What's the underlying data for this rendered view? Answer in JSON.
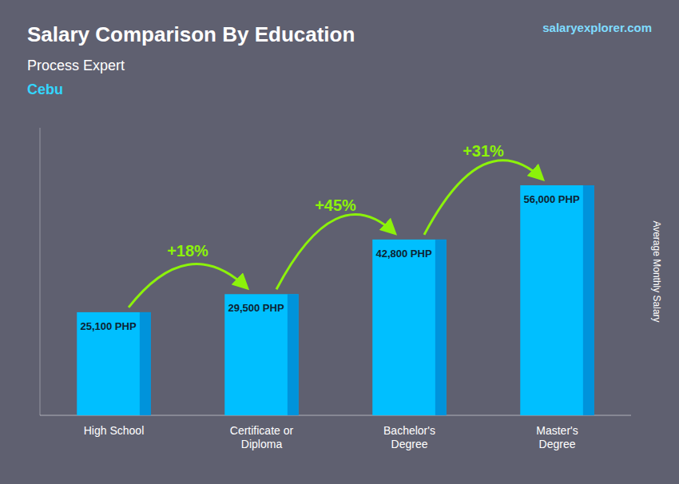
{
  "chart_data": {
    "type": "bar",
    "title": "Salary Comparison By Education",
    "subtitle": [
      "Process Expert",
      "Cebu"
    ],
    "source": "salaryexplorer.com",
    "y_label": "Average Monthly Salary",
    "categories": [
      "High School",
      "Certificate or\nDiploma",
      "Bachelor's\nDegree",
      "Master's\nDegree"
    ],
    "values": [
      25100,
      29500,
      42800,
      56000
    ],
    "value_labels": [
      "25,100 PHP",
      "29,500 PHP",
      "42,800 PHP",
      "56,000 PHP"
    ],
    "data_labels": true,
    "annotations": [
      "+18%",
      "+45%",
      "+31%"
    ],
    "color": "#00BFFF",
    "ylim": [
      0,
      70000
    ],
    "tick_labels": "x",
    "grid": false
  }
}
